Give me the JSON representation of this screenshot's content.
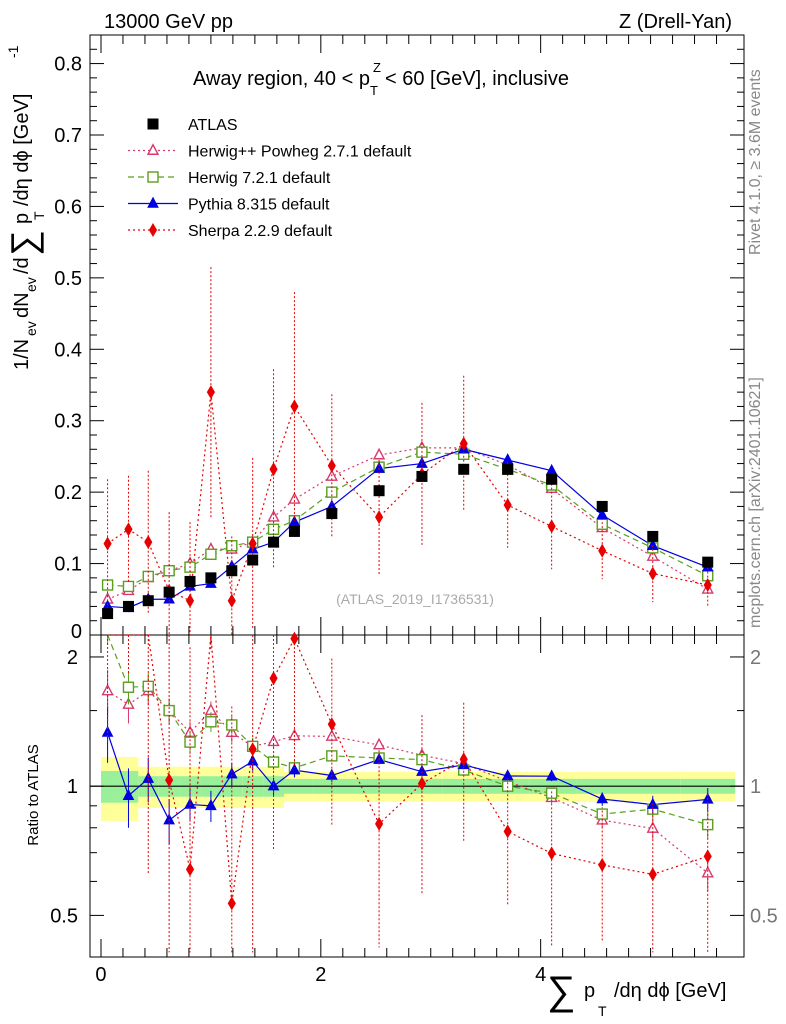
{
  "header": {
    "energy": "13000 GeV pp",
    "process": "Z (Drell-Yan)",
    "rivet": "Rivet 4.1.0, ≥ 3.6M events",
    "site": "mcplots.cern.ch [arXiv:2401.10621]",
    "analysis": "(ATLAS_2019_I1736531)"
  },
  "chart_data": {
    "type": "scatter",
    "title": "Away region, 40 < p_T^Z < 60 [GeV], inclusive",
    "xlabel": "Σ p_T /dη dϕ [GeV]",
    "ylabel": "1/N_ev dN_ev/dΣ p_T /dη dϕ [GeV]^-1",
    "ratio_ylabel": "Ratio to ATLAS",
    "xlim": [
      -0.1,
      5.85
    ],
    "ylim": [
      0,
      0.84
    ],
    "ratio_ylim": [
      0.4,
      2.25
    ],
    "x_ticks": [
      "0",
      "2",
      "4"
    ],
    "y_ticks": [
      "0.1",
      "0.2",
      "0.3",
      "0.4",
      "0.5",
      "0.6",
      "0.7",
      "0.8"
    ],
    "ratio_ticks": [
      "0.5",
      "1",
      "2"
    ],
    "x": [
      0.06,
      0.25,
      0.43,
      0.62,
      0.81,
      1.0,
      1.19,
      1.38,
      1.57,
      1.76,
      2.1,
      2.53,
      2.92,
      3.3,
      3.7,
      4.1,
      4.56,
      5.02,
      5.52
    ],
    "series": [
      {
        "name": "ATLAS",
        "marker": "square",
        "color": "#000000",
        "values": [
          0.03,
          0.04,
          0.048,
          0.06,
          0.075,
          0.08,
          0.09,
          0.105,
          0.13,
          0.145,
          0.17,
          0.202,
          0.222,
          0.232,
          0.232,
          0.218,
          0.18,
          0.138,
          0.102
        ]
      },
      {
        "name": "Herwig++ Powheg 2.7.1 default",
        "marker": "triangle-open",
        "color": "#d63a6c",
        "values": [
          0.05,
          0.062,
          0.08,
          0.09,
          0.1,
          0.12,
          0.12,
          0.13,
          0.165,
          0.19,
          0.222,
          0.252,
          0.262,
          0.262,
          0.238,
          0.205,
          0.15,
          0.11,
          0.064
        ]
      },
      {
        "name": "Herwig 7.2.1 default",
        "marker": "square-open",
        "color": "#5a9e1e",
        "values": [
          0.07,
          0.068,
          0.082,
          0.09,
          0.095,
          0.113,
          0.125,
          0.13,
          0.148,
          0.16,
          0.2,
          0.235,
          0.256,
          0.253,
          0.232,
          0.21,
          0.155,
          0.122,
          0.083
        ]
      },
      {
        "name": "Pythia 8.315 default",
        "marker": "triangle",
        "color": "#0000e0",
        "values": [
          0.04,
          0.038,
          0.05,
          0.05,
          0.068,
          0.072,
          0.096,
          0.12,
          0.13,
          0.158,
          0.18,
          0.233,
          0.24,
          0.26,
          0.245,
          0.23,
          0.168,
          0.125,
          0.095
        ]
      },
      {
        "name": "Sherpa 2.2.9 default",
        "marker": "diamond",
        "color": "#e80000",
        "values": [
          0.128,
          0.148,
          0.13,
          0.062,
          0.048,
          0.34,
          0.048,
          0.128,
          0.232,
          0.32,
          0.237,
          0.165,
          0.225,
          0.268,
          0.182,
          0.152,
          0.118,
          0.086,
          0.07
        ],
        "errors": [
          0.09,
          0.075,
          0.1,
          0.11,
          0.11,
          0.175,
          0.09,
          0.12,
          0.14,
          0.16,
          0.1,
          0.08,
          0.1,
          0.095,
          0.06,
          0.06,
          0.04,
          0.04,
          0.03
        ]
      }
    ]
  }
}
